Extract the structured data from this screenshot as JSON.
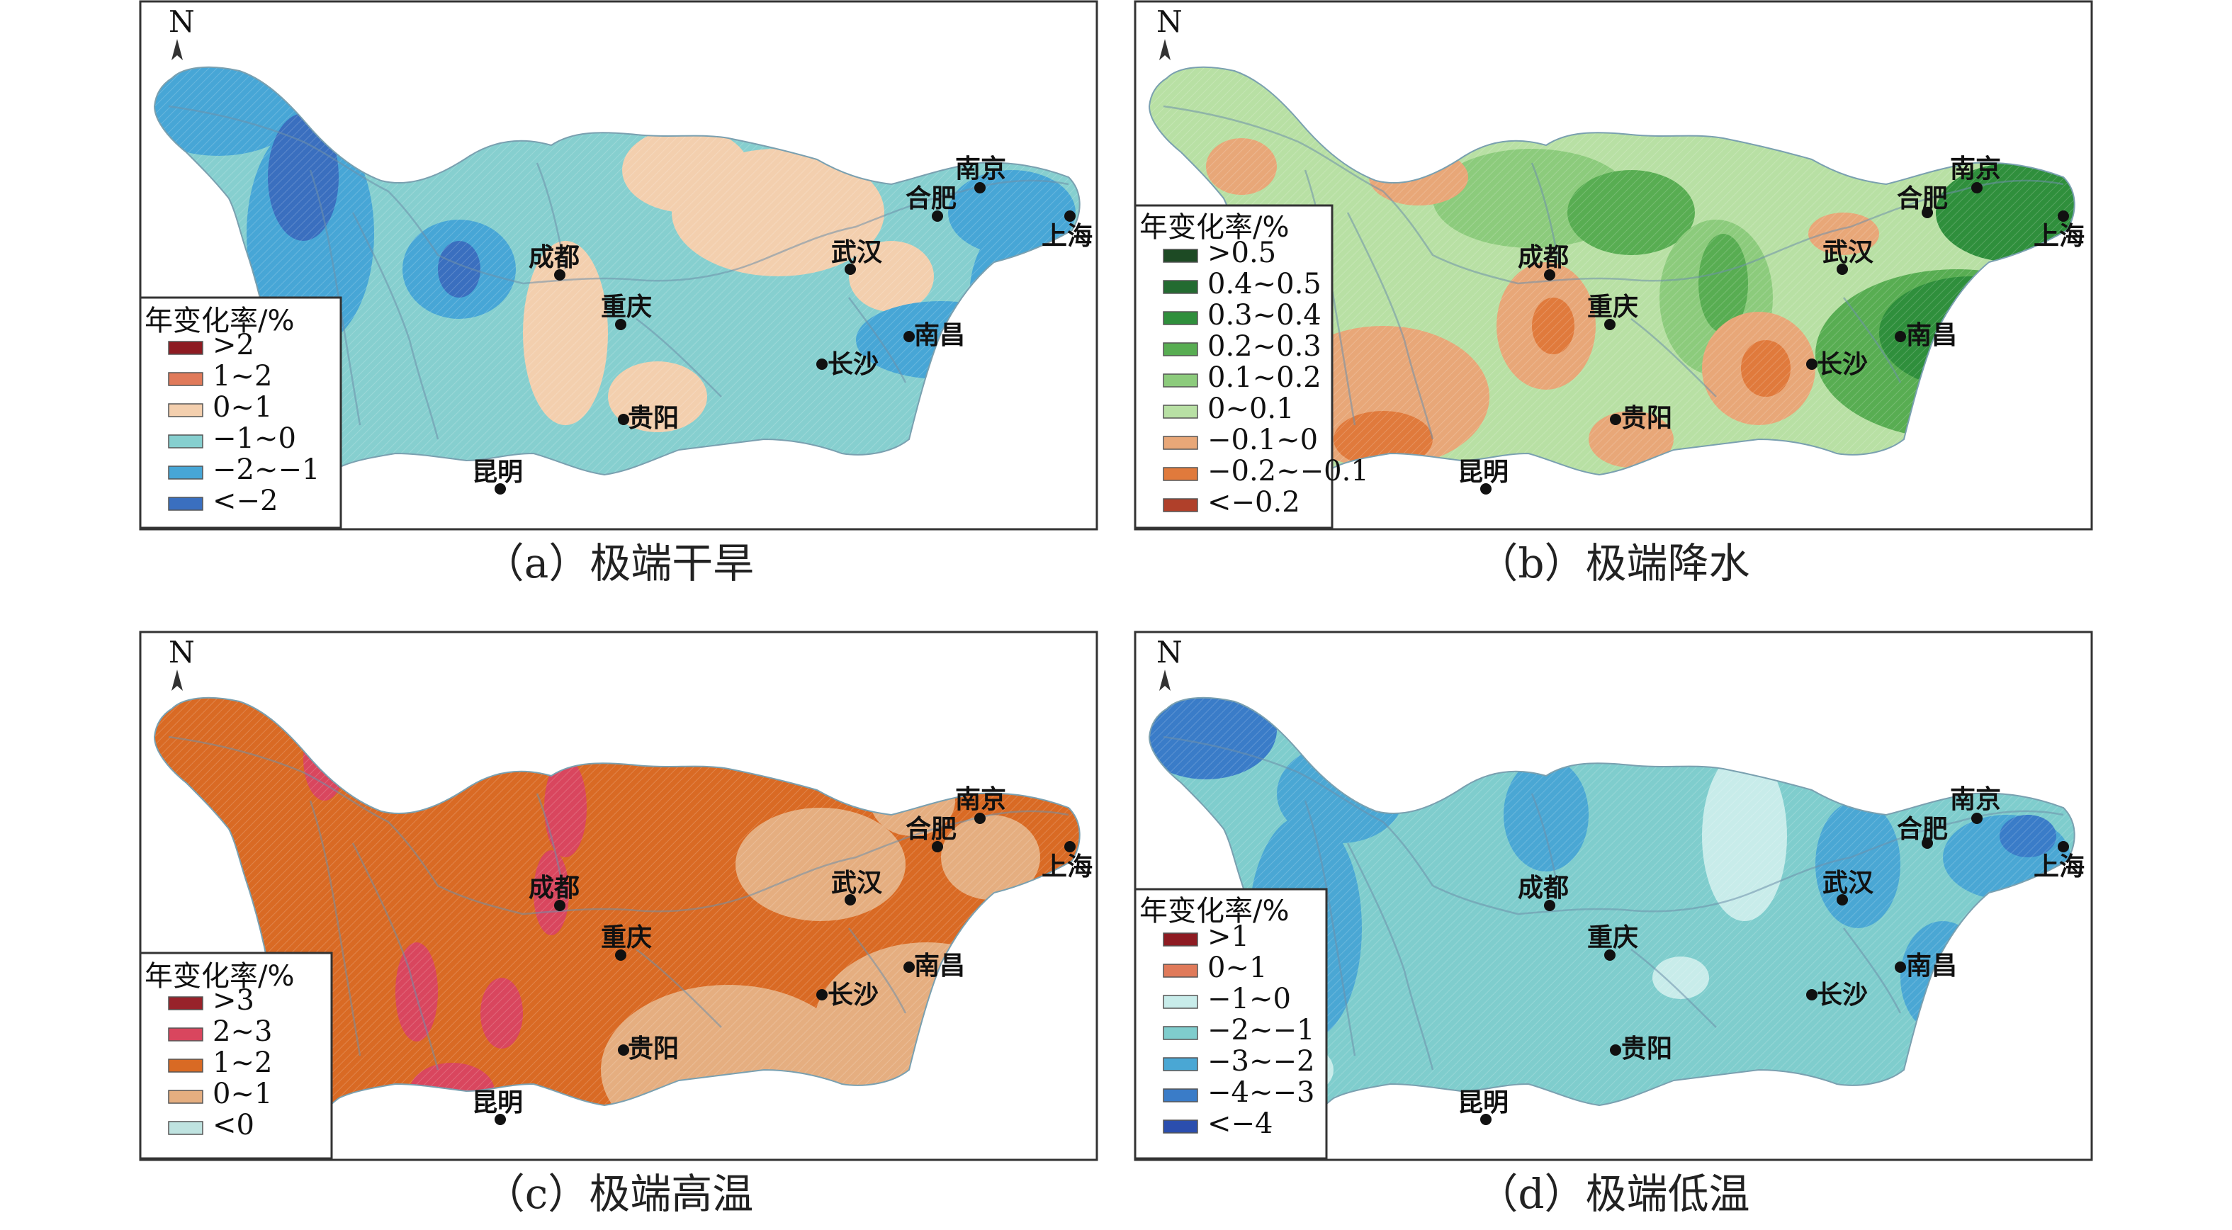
{
  "north_label": "N",
  "legend_title": "年变化率/%",
  "cities": {
    "nanjing": "南京",
    "hefei": "合肥",
    "shanghai": "上海",
    "wuhan": "武汉",
    "chengdu": "成都",
    "chongqing": "重庆",
    "nanchang": "南昌",
    "changsha": "长沙",
    "guiyang": "贵阳",
    "kunming": "昆明"
  },
  "panels": [
    {
      "caption": "（a）极端干旱",
      "legend": [
        {
          "label": ">2",
          "color": "#8e1b22"
        },
        {
          "label": "1~2",
          "color": "#e07a5a"
        },
        {
          "label": "0~1",
          "color": "#f3cfae"
        },
        {
          "label": "−1~0",
          "color": "#86cfcf"
        },
        {
          "label": "−2~−1",
          "color": "#47a6d6"
        },
        {
          "label": "<−2",
          "color": "#3a6fbf"
        }
      ]
    },
    {
      "caption": "（b）极端降水",
      "legend": [
        {
          "label": ">0.5",
          "color": "#1d4a24"
        },
        {
          "label": "0.4~0.5",
          "color": "#236b31"
        },
        {
          "label": "0.3~0.4",
          "color": "#2f8f3c"
        },
        {
          "label": "0.2~0.3",
          "color": "#58ad52"
        },
        {
          "label": "0.1~0.2",
          "color": "#8ccb7c"
        },
        {
          "label": "0~0.1",
          "color": "#b8e0a4"
        },
        {
          "label": "−0.1~0",
          "color": "#e8a778"
        },
        {
          "label": "−0.2~−0.1",
          "color": "#e07a3c"
        },
        {
          "label": "<−0.2",
          "color": "#b0402a"
        }
      ]
    },
    {
      "caption": "（c）极端高温",
      "legend": [
        {
          "label": ">3",
          "color": "#98222a"
        },
        {
          "label": "2~3",
          "color": "#d9465e"
        },
        {
          "label": "1~2",
          "color": "#d96a24"
        },
        {
          "label": "0~1",
          "color": "#e5ae80"
        },
        {
          "label": "<0",
          "color": "#bfe3e0"
        }
      ]
    },
    {
      "caption": "（d）极端低温",
      "legend": [
        {
          "label": ">1",
          "color": "#8e1b22"
        },
        {
          "label": "0~1",
          "color": "#e07a5a"
        },
        {
          "label": "−1~0",
          "color": "#c8ecea"
        },
        {
          "label": "−2~−1",
          "color": "#7fcdcd"
        },
        {
          "label": "−3~−2",
          "color": "#4aa7d4"
        },
        {
          "label": "−4~−3",
          "color": "#3a7cc8"
        },
        {
          "label": "<−4",
          "color": "#2b4eae"
        }
      ]
    }
  ]
}
